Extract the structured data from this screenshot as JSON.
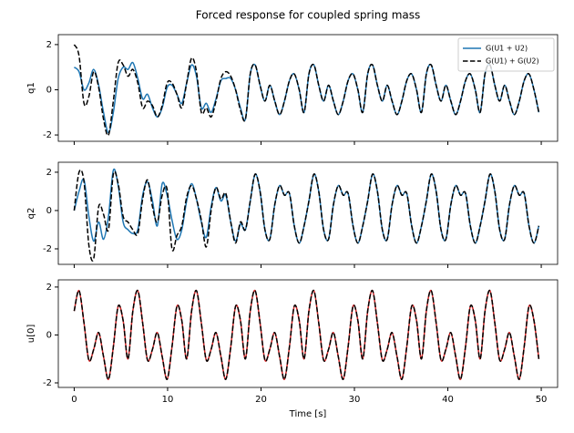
{
  "title": "Forced response for coupled spring mass",
  "chart_data": [
    {
      "type": "line",
      "ylabel": "q1",
      "legend": "upper right",
      "xlim": [
        -1.7,
        51.75
      ],
      "xticks": [
        0,
        10,
        20,
        30,
        40,
        50
      ],
      "ylim": [
        -2.28,
        2.44
      ],
      "yticks": [
        -2,
        0,
        2
      ],
      "x": [
        0,
        0.52,
        1.05,
        1.57,
        2.09,
        2.62,
        3.14,
        3.67,
        4.19,
        4.71,
        5.24,
        5.76,
        6.28,
        6.81,
        7.33,
        7.85,
        8.38,
        8.9,
        9.42,
        9.95,
        10.47,
        11,
        11.52,
        12.04,
        12.57,
        13.09,
        13.61,
        14.14,
        14.66,
        15.18,
        15.71,
        16.23,
        16.76,
        17.28,
        17.8,
        18.33,
        18.85,
        19.37,
        19.9,
        20.42,
        20.94,
        21.47,
        21.99,
        22.51,
        23.04,
        23.56,
        24.09,
        24.61,
        25.13,
        25.66,
        26.18,
        26.7,
        27.23,
        27.75,
        28.27,
        28.8,
        29.32,
        29.85,
        30.37,
        30.89,
        31.42,
        31.94,
        32.46,
        32.99,
        33.51,
        34.03,
        34.56,
        35.08,
        35.6,
        36.13,
        36.65,
        37.18,
        37.7,
        38.22,
        38.75,
        39.27,
        39.79,
        40.32,
        40.84,
        41.36,
        41.89,
        42.41,
        42.94,
        43.46,
        43.98,
        44.51,
        45.03,
        45.55,
        46.08,
        46.6,
        47.12,
        47.65,
        48.17,
        48.69,
        49.22,
        49.74
      ],
      "series": [
        {
          "name": "G(U1 + U2)",
          "color": "#1f77b4",
          "dash": false,
          "values": [
            1.0,
            0.8,
            0.0,
            0.3,
            0.9,
            0.2,
            -1.0,
            -1.9,
            -1.0,
            0.5,
            1.0,
            0.9,
            1.2,
            0.5,
            -0.4,
            -0.2,
            -0.8,
            -1.2,
            -0.8,
            0.1,
            0.2,
            -0.2,
            -0.6,
            0.3,
            1.1,
            0.6,
            -0.8,
            -0.6,
            -1.0,
            -0.4,
            0.4,
            0.5,
            0.5,
            0.0,
            -0.8,
            -1.3,
            0.7,
            1.1,
            0.2,
            -0.5,
            0.2,
            -0.5,
            -1.1,
            -0.5,
            0.4,
            0.7,
            0.0,
            -1.0,
            0.7,
            1.1,
            0.2,
            -0.5,
            0.2,
            -0.5,
            -1.1,
            -0.5,
            0.4,
            0.7,
            0.0,
            -1.0,
            0.7,
            1.1,
            0.2,
            -0.5,
            0.2,
            -0.5,
            -1.1,
            -0.5,
            0.4,
            0.7,
            0.0,
            -1.0,
            0.7,
            1.1,
            0.2,
            -0.5,
            0.2,
            -0.5,
            -1.1,
            -0.5,
            0.4,
            0.7,
            0.0,
            -1.0,
            0.7,
            1.1,
            0.2,
            -0.5,
            0.2,
            -0.5,
            -1.1,
            -0.5,
            0.4,
            0.7,
            0.0,
            -1.0
          ]
        },
        {
          "name": "G(U1) + G(U2)",
          "color": "#000000",
          "dash": true,
          "values": [
            2.0,
            1.5,
            -0.6,
            -0.3,
            0.8,
            0.1,
            -1.3,
            -2.0,
            -0.5,
            1.2,
            1.1,
            0.6,
            0.9,
            0.3,
            -0.8,
            -0.5,
            -0.7,
            -1.2,
            -0.7,
            0.3,
            0.3,
            -0.2,
            -0.8,
            0.3,
            1.4,
            0.8,
            -1.0,
            -0.8,
            -1.2,
            -0.5,
            0.5,
            0.8,
            0.6,
            0.0,
            -0.9,
            -1.3,
            0.7,
            1.1,
            0.2,
            -0.5,
            0.2,
            -0.5,
            -1.1,
            -0.5,
            0.4,
            0.7,
            0.0,
            -1.0,
            0.7,
            1.1,
            0.2,
            -0.5,
            0.2,
            -0.5,
            -1.1,
            -0.5,
            0.4,
            0.7,
            0.0,
            -1.0,
            0.7,
            1.1,
            0.2,
            -0.5,
            0.2,
            -0.5,
            -1.1,
            -0.5,
            0.4,
            0.7,
            0.0,
            -1.0,
            0.7,
            1.1,
            0.2,
            -0.5,
            0.2,
            -0.5,
            -1.1,
            -0.5,
            0.4,
            0.7,
            0.0,
            -1.0,
            0.7,
            1.1,
            0.2,
            -0.5,
            0.2,
            -0.5,
            -1.1,
            -0.5,
            0.4,
            0.7,
            0.0,
            -1.0
          ]
        }
      ]
    },
    {
      "type": "line",
      "ylabel": "q2",
      "xlim": [
        -1.7,
        51.75
      ],
      "xticks": [
        0,
        10,
        20,
        30,
        40,
        50
      ],
      "ylim": [
        -2.81,
        2.52
      ],
      "yticks": [
        -2,
        0,
        2
      ],
      "x": [
        0,
        0.52,
        1.05,
        1.57,
        2.09,
        2.62,
        3.14,
        3.67,
        4.19,
        4.71,
        5.24,
        5.76,
        6.28,
        6.81,
        7.33,
        7.85,
        8.38,
        8.9,
        9.42,
        9.95,
        10.47,
        11,
        11.52,
        12.04,
        12.57,
        13.09,
        13.61,
        14.14,
        14.66,
        15.18,
        15.71,
        16.23,
        16.76,
        17.28,
        17.8,
        18.33,
        18.85,
        19.37,
        19.9,
        20.42,
        20.94,
        21.47,
        21.99,
        22.51,
        23.04,
        23.56,
        24.09,
        24.61,
        25.13,
        25.66,
        26.18,
        26.7,
        27.23,
        27.75,
        28.27,
        28.8,
        29.32,
        29.85,
        30.37,
        30.89,
        31.42,
        31.94,
        32.46,
        32.99,
        33.51,
        34.03,
        34.56,
        35.08,
        35.6,
        36.13,
        36.65,
        37.18,
        37.7,
        38.22,
        38.75,
        39.27,
        39.79,
        40.32,
        40.84,
        41.36,
        41.89,
        42.41,
        42.94,
        43.46,
        43.98,
        44.51,
        45.03,
        45.55,
        46.08,
        46.6,
        47.12,
        47.65,
        48.17,
        48.69,
        49.22,
        49.74
      ],
      "series": [
        {
          "color": "#1f77b4",
          "dash": false,
          "values": [
            0,
            1.0,
            1.6,
            -0.3,
            -1.6,
            -0.6,
            -1.5,
            -0.3,
            2.1,
            1.3,
            -0.6,
            -1.0,
            -1.2,
            -1.0,
            0.8,
            1.5,
            0.5,
            -0.8,
            1.4,
            0.8,
            -0.5,
            -1.5,
            -1.0,
            0.5,
            1.4,
            0.6,
            -0.6,
            -1.4,
            0.2,
            1.2,
            0.5,
            0.8,
            -0.6,
            -1.6,
            -0.7,
            -1.0,
            0.5,
            1.9,
            1.0,
            -1.0,
            -1.5,
            0.3,
            1.3,
            0.8,
            0.9,
            -0.8,
            -1.7,
            -0.8,
            0.5,
            1.9,
            1.0,
            -1.0,
            -1.5,
            0.3,
            1.3,
            0.8,
            0.9,
            -0.8,
            -1.7,
            -0.8,
            0.5,
            1.9,
            1.0,
            -1.0,
            -1.5,
            0.3,
            1.3,
            0.8,
            0.9,
            -0.8,
            -1.7,
            -0.8,
            0.5,
            1.9,
            1.0,
            -1.0,
            -1.5,
            0.3,
            1.3,
            0.8,
            0.9,
            -0.8,
            -1.7,
            -0.8,
            0.5,
            1.9,
            1.0,
            -1.0,
            -1.5,
            0.3,
            1.3,
            0.8,
            0.9,
            -0.8,
            -1.7,
            -0.8
          ]
        },
        {
          "color": "#000000",
          "dash": true,
          "values": [
            0,
            2.0,
            1.5,
            -1.8,
            -2.5,
            0.2,
            -0.2,
            -1.0,
            1.9,
            1.4,
            -0.3,
            -0.6,
            -1.0,
            -1.2,
            0.6,
            1.6,
            0.2,
            -0.6,
            0.8,
            1.1,
            -2.0,
            -1.3,
            -0.8,
            0.7,
            1.3,
            0.6,
            -0.5,
            -1.9,
            0.0,
            1.2,
            0.6,
            0.9,
            -0.6,
            -1.7,
            -0.6,
            -1.0,
            0.5,
            1.9,
            1.0,
            -1.0,
            -1.5,
            0.3,
            1.3,
            0.8,
            0.9,
            -0.8,
            -1.7,
            -0.8,
            0.5,
            1.9,
            1.0,
            -1.0,
            -1.5,
            0.3,
            1.3,
            0.8,
            0.9,
            -0.8,
            -1.7,
            -0.8,
            0.5,
            1.9,
            1.0,
            -1.0,
            -1.5,
            0.3,
            1.3,
            0.8,
            0.9,
            -0.8,
            -1.7,
            -0.8,
            0.5,
            1.9,
            1.0,
            -1.0,
            -1.5,
            0.3,
            1.3,
            0.8,
            0.9,
            -0.8,
            -1.7,
            -0.8,
            0.5,
            1.9,
            1.0,
            -1.0,
            -1.5,
            0.3,
            1.3,
            0.8,
            0.9,
            -0.8,
            -1.7,
            -0.8
          ]
        }
      ]
    },
    {
      "type": "line",
      "ylabel": "u[0]",
      "xlabel": "Time [s]",
      "xlim": [
        -1.7,
        51.75
      ],
      "xticks": [
        0,
        10,
        20,
        30,
        40,
        50
      ],
      "ylim": [
        -2.19,
        2.3
      ],
      "yticks": [
        -2,
        0,
        2
      ],
      "x": [
        0,
        0.52,
        1.05,
        1.57,
        2.09,
        2.62,
        3.14,
        3.67,
        4.19,
        4.71,
        5.24,
        5.76,
        6.28,
        6.81,
        7.33,
        7.85,
        8.38,
        8.9,
        9.42,
        9.95,
        10.47,
        11,
        11.52,
        12.04,
        12.57,
        13.09,
        13.61,
        14.14,
        14.66,
        15.18,
        15.71,
        16.23,
        16.76,
        17.28,
        17.8,
        18.33,
        18.85,
        19.37,
        19.9,
        20.42,
        20.94,
        21.47,
        21.99,
        22.51,
        23.04,
        23.56,
        24.09,
        24.61,
        25.13,
        25.66,
        26.18,
        26.7,
        27.23,
        27.75,
        28.27,
        28.8,
        29.32,
        29.85,
        30.37,
        30.89,
        31.42,
        31.94,
        32.46,
        32.99,
        33.51,
        34.03,
        34.56,
        35.08,
        35.6,
        36.13,
        36.65,
        37.18,
        37.7,
        38.22,
        38.75,
        39.27,
        39.79,
        40.32,
        40.84,
        41.36,
        41.89,
        42.41,
        42.94,
        43.46,
        43.98,
        44.51,
        45.03,
        45.55,
        46.08,
        46.6,
        47.12,
        47.65,
        48.17,
        48.69,
        49.22,
        49.74
      ],
      "series": [
        {
          "color": "#d62728",
          "dash": false,
          "values": [
            1.0,
            1.85,
            0.5,
            -1.05,
            -0.6,
            0.1,
            -0.9,
            -1.85,
            -0.5,
            1.2,
            0.6,
            -1.0,
            1.0,
            1.85,
            0.5,
            -1.05,
            -0.6,
            0.1,
            -0.9,
            -1.85,
            -0.5,
            1.2,
            0.6,
            -1.0,
            1.0,
            1.85,
            0.5,
            -1.05,
            -0.6,
            0.1,
            -0.9,
            -1.85,
            -0.5,
            1.2,
            0.6,
            -1.0,
            1.0,
            1.85,
            0.5,
            -1.05,
            -0.6,
            0.1,
            -0.9,
            -1.85,
            -0.5,
            1.2,
            0.6,
            -1.0,
            1.0,
            1.85,
            0.5,
            -1.05,
            -0.6,
            0.1,
            -0.9,
            -1.85,
            -0.5,
            1.2,
            0.6,
            -1.0,
            1.0,
            1.85,
            0.5,
            -1.05,
            -0.6,
            0.1,
            -0.9,
            -1.85,
            -0.5,
            1.2,
            0.6,
            -1.0,
            1.0,
            1.85,
            0.5,
            -1.05,
            -0.6,
            0.1,
            -0.9,
            -1.85,
            -0.5,
            1.2,
            0.6,
            -1.0,
            1.0,
            1.85,
            0.5,
            -1.05,
            -0.6,
            0.1,
            -0.9,
            -1.85,
            -0.5,
            1.2,
            0.6,
            -1.0
          ]
        },
        {
          "color": "#000000",
          "dash": true,
          "values": [
            1.0,
            1.85,
            0.5,
            -1.05,
            -0.6,
            0.1,
            -0.9,
            -1.85,
            -0.5,
            1.2,
            0.6,
            -1.0,
            1.0,
            1.85,
            0.5,
            -1.05,
            -0.6,
            0.1,
            -0.9,
            -1.85,
            -0.5,
            1.2,
            0.6,
            -1.0,
            1.0,
            1.85,
            0.5,
            -1.05,
            -0.6,
            0.1,
            -0.9,
            -1.85,
            -0.5,
            1.2,
            0.6,
            -1.0,
            1.0,
            1.85,
            0.5,
            -1.05,
            -0.6,
            0.1,
            -0.9,
            -1.85,
            -0.5,
            1.2,
            0.6,
            -1.0,
            1.0,
            1.85,
            0.5,
            -1.05,
            -0.6,
            0.1,
            -0.9,
            -1.85,
            -0.5,
            1.2,
            0.6,
            -1.0,
            1.0,
            1.85,
            0.5,
            -1.05,
            -0.6,
            0.1,
            -0.9,
            -1.85,
            -0.5,
            1.2,
            0.6,
            -1.0,
            1.0,
            1.85,
            0.5,
            -1.05,
            -0.6,
            0.1,
            -0.9,
            -1.85,
            -0.5,
            1.2,
            0.6,
            -1.0,
            1.0,
            1.85,
            0.5,
            -1.05,
            -0.6,
            0.1,
            -0.9,
            -1.85,
            -0.5,
            1.2,
            0.6,
            -1.0
          ]
        }
      ]
    }
  ]
}
